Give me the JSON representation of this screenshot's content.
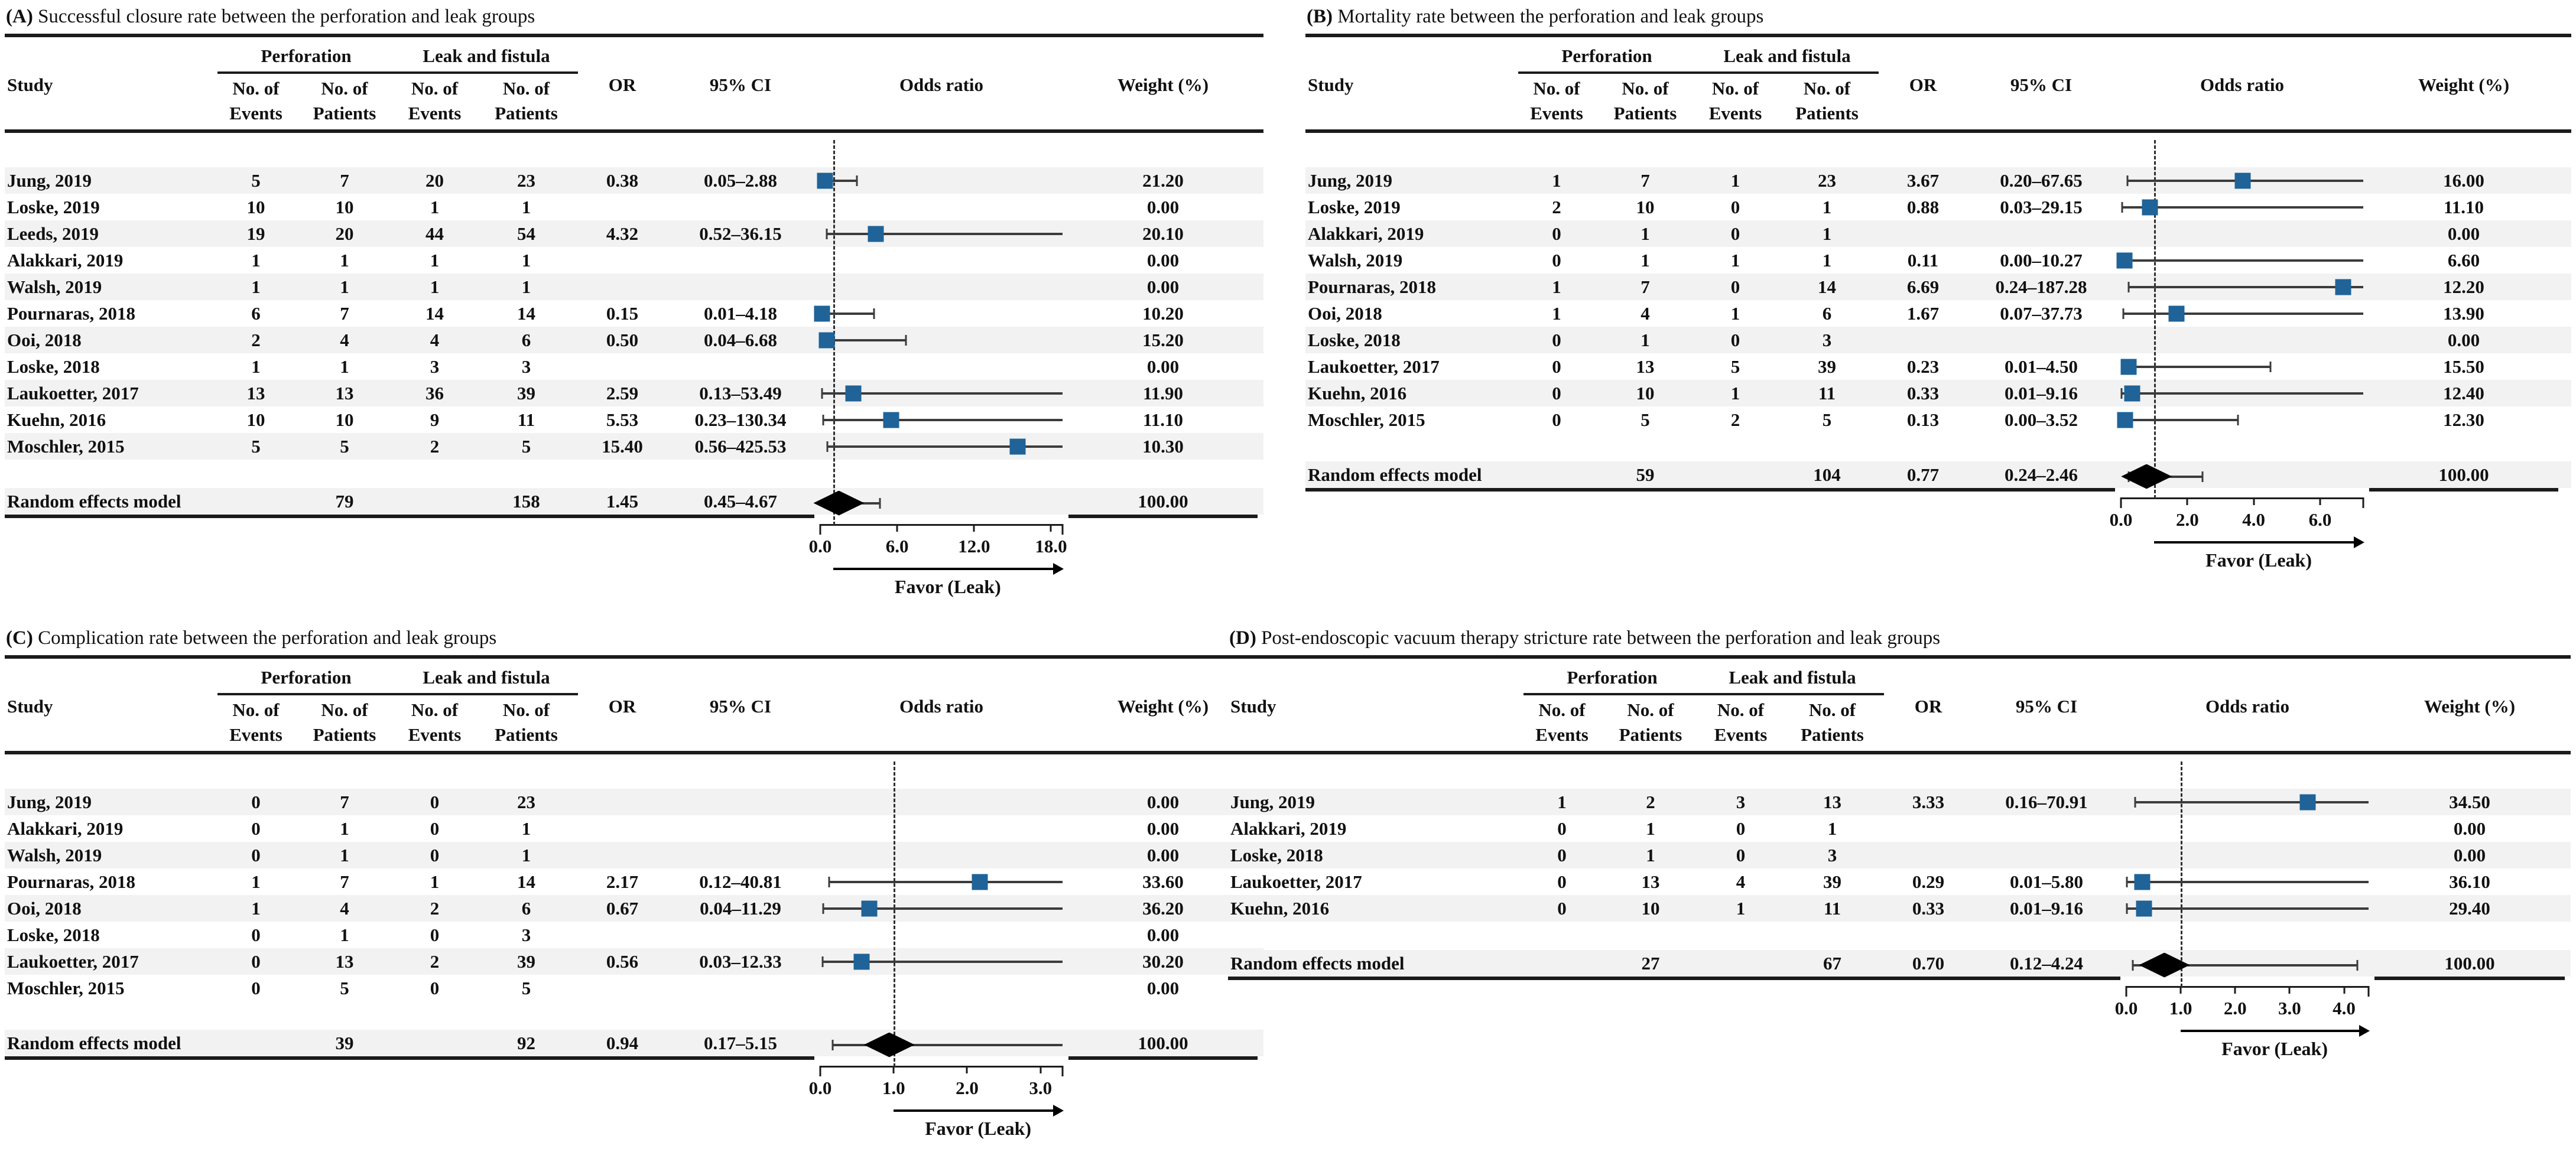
{
  "colors": {
    "marker": "#1f6398",
    "diamond": "#000000",
    "stripe": "#f2f2f2",
    "rule": "#1b1b1b"
  },
  "header": {
    "study": "Study",
    "perforation": "Perforation",
    "leak": "Leak and fistula",
    "no_of": "No. of",
    "events": "Events",
    "patients": "Patients",
    "or": "OR",
    "ci": "95% CI",
    "odds_ratio": "Odds ratio",
    "weight": "Weight (%)"
  },
  "chart_data": [
    {
      "id": "A",
      "type": "forest_plot",
      "label": "(A)",
      "title": "Successful closure rate between the perforation and leak groups",
      "favor_label": "Favor (Leak)",
      "axis": {
        "ticks": [
          0,
          6,
          12,
          18
        ],
        "tick_labels": [
          "0.0",
          "6.0",
          "12.0",
          "18.0"
        ],
        "end": 18.9,
        "null_line": 1.0
      },
      "rows": [
        {
          "study": "Jung, 2019",
          "perf_events": "5",
          "perf_patients": "7",
          "leak_events": "20",
          "leak_patients": "23",
          "or": "0.38",
          "ci": "0.05–2.88",
          "weight": "21.20",
          "est": [
            0.38,
            0.05,
            2.88
          ]
        },
        {
          "study": "Loske, 2019",
          "perf_events": "10",
          "perf_patients": "10",
          "leak_events": "1",
          "leak_patients": "1",
          "or": "",
          "ci": "",
          "weight": "0.00",
          "est": null
        },
        {
          "study": "Leeds, 2019",
          "perf_events": "19",
          "perf_patients": "20",
          "leak_events": "44",
          "leak_patients": "54",
          "or": "4.32",
          "ci": "0.52–36.15",
          "weight": "20.10",
          "est": [
            4.32,
            0.52,
            36.15
          ]
        },
        {
          "study": "Alakkari, 2019",
          "perf_events": "1",
          "perf_patients": "1",
          "leak_events": "1",
          "leak_patients": "1",
          "or": "",
          "ci": "",
          "weight": "0.00",
          "est": null
        },
        {
          "study": "Walsh, 2019",
          "perf_events": "1",
          "perf_patients": "1",
          "leak_events": "1",
          "leak_patients": "1",
          "or": "",
          "ci": "",
          "weight": "0.00",
          "est": null
        },
        {
          "study": "Pournaras, 2018",
          "perf_events": "6",
          "perf_patients": "7",
          "leak_events": "14",
          "leak_patients": "14",
          "or": "0.15",
          "ci": "0.01–4.18",
          "weight": "10.20",
          "est": [
            0.15,
            0.01,
            4.18
          ]
        },
        {
          "study": "Ooi, 2018",
          "perf_events": "2",
          "perf_patients": "4",
          "leak_events": "4",
          "leak_patients": "6",
          "or": "0.50",
          "ci": "0.04–6.68",
          "weight": "15.20",
          "est": [
            0.5,
            0.04,
            6.68
          ]
        },
        {
          "study": "Loske, 2018",
          "perf_events": "1",
          "perf_patients": "1",
          "leak_events": "3",
          "leak_patients": "3",
          "or": "",
          "ci": "",
          "weight": "0.00",
          "est": null
        },
        {
          "study": "Laukoetter, 2017",
          "perf_events": "13",
          "perf_patients": "13",
          "leak_events": "36",
          "leak_patients": "39",
          "or": "2.59",
          "ci": "0.13–53.49",
          "weight": "11.90",
          "est": [
            2.59,
            0.13,
            53.49
          ]
        },
        {
          "study": "Kuehn, 2016",
          "perf_events": "10",
          "perf_patients": "10",
          "leak_events": "9",
          "leak_patients": "11",
          "or": "5.53",
          "ci": "0.23–130.34",
          "weight": "11.10",
          "est": [
            5.53,
            0.23,
            130.34
          ]
        },
        {
          "study": "Moschler, 2015",
          "perf_events": "5",
          "perf_patients": "5",
          "leak_events": "2",
          "leak_patients": "5",
          "or": "15.40",
          "ci": "0.56–425.53",
          "weight": "10.30",
          "est": [
            15.4,
            0.56,
            425.53
          ]
        }
      ],
      "summary": {
        "study": "Random effects model",
        "perf_events": "",
        "perf_patients": "79",
        "leak_events": "",
        "leak_patients": "158",
        "or": "1.45",
        "ci": "0.45–4.67",
        "weight": "100.00",
        "est": [
          1.45,
          0.45,
          4.67
        ]
      }
    },
    {
      "id": "B",
      "type": "forest_plot",
      "label": "(B)",
      "title": "Mortality rate between the perforation and leak groups",
      "favor_label": "Favor (Leak)",
      "axis": {
        "ticks": [
          0,
          2,
          4,
          6
        ],
        "tick_labels": [
          "0.0",
          "2.0",
          "4.0",
          "6.0"
        ],
        "end": 7.3,
        "null_line": 1.0
      },
      "rows": [
        {
          "study": "Jung, 2019",
          "perf_events": "1",
          "perf_patients": "7",
          "leak_events": "1",
          "leak_patients": "23",
          "or": "3.67",
          "ci": "0.20–67.65",
          "weight": "16.00",
          "est": [
            3.67,
            0.2,
            67.65
          ]
        },
        {
          "study": "Loske, 2019",
          "perf_events": "2",
          "perf_patients": "10",
          "leak_events": "0",
          "leak_patients": "1",
          "or": "0.88",
          "ci": "0.03–29.15",
          "weight": "11.10",
          "est": [
            0.88,
            0.03,
            29.15
          ]
        },
        {
          "study": "Alakkari, 2019",
          "perf_events": "0",
          "perf_patients": "1",
          "leak_events": "0",
          "leak_patients": "1",
          "or": "",
          "ci": "",
          "weight": "0.00",
          "est": null
        },
        {
          "study": "Walsh, 2019",
          "perf_events": "0",
          "perf_patients": "1",
          "leak_events": "1",
          "leak_patients": "1",
          "or": "0.11",
          "ci": "0.00–10.27",
          "weight": "6.60",
          "est": [
            0.11,
            0.0,
            10.27
          ]
        },
        {
          "study": "Pournaras, 2018",
          "perf_events": "1",
          "perf_patients": "7",
          "leak_events": "0",
          "leak_patients": "14",
          "or": "6.69",
          "ci": "0.24–187.28",
          "weight": "12.20",
          "est": [
            6.69,
            0.24,
            187.28
          ]
        },
        {
          "study": "Ooi, 2018",
          "perf_events": "1",
          "perf_patients": "4",
          "leak_events": "1",
          "leak_patients": "6",
          "or": "1.67",
          "ci": "0.07–37.73",
          "weight": "13.90",
          "est": [
            1.67,
            0.07,
            37.73
          ]
        },
        {
          "study": "Loske, 2018",
          "perf_events": "0",
          "perf_patients": "1",
          "leak_events": "0",
          "leak_patients": "3",
          "or": "",
          "ci": "",
          "weight": "0.00",
          "est": null
        },
        {
          "study": "Laukoetter, 2017",
          "perf_events": "0",
          "perf_patients": "13",
          "leak_events": "5",
          "leak_patients": "39",
          "or": "0.23",
          "ci": "0.01–4.50",
          "weight": "15.50",
          "est": [
            0.23,
            0.01,
            4.5
          ]
        },
        {
          "study": "Kuehn, 2016",
          "perf_events": "0",
          "perf_patients": "10",
          "leak_events": "1",
          "leak_patients": "11",
          "or": "0.33",
          "ci": "0.01–9.16",
          "weight": "12.40",
          "est": [
            0.33,
            0.01,
            9.16
          ]
        },
        {
          "study": "Moschler, 2015",
          "perf_events": "0",
          "perf_patients": "5",
          "leak_events": "2",
          "leak_patients": "5",
          "or": "0.13",
          "ci": "0.00–3.52",
          "weight": "12.30",
          "est": [
            0.13,
            0.0,
            3.52
          ]
        }
      ],
      "summary": {
        "study": "Random effects model",
        "perf_events": "",
        "perf_patients": "59",
        "leak_events": "",
        "leak_patients": "104",
        "or": "0.77",
        "ci": "0.24–2.46",
        "weight": "100.00",
        "est": [
          0.77,
          0.24,
          2.46
        ]
      }
    },
    {
      "id": "C",
      "type": "forest_plot",
      "label": "(C)",
      "title": "Complication rate between the perforation and leak groups",
      "favor_label": "Favor (Leak)",
      "axis": {
        "ticks": [
          0,
          1,
          2,
          3
        ],
        "tick_labels": [
          "0.0",
          "1.0",
          "2.0",
          "3.0"
        ],
        "end": 3.3,
        "null_line": 1.0
      },
      "rows": [
        {
          "study": "Jung, 2019",
          "perf_events": "0",
          "perf_patients": "7",
          "leak_events": "0",
          "leak_patients": "23",
          "or": "",
          "ci": "",
          "weight": "0.00",
          "est": null
        },
        {
          "study": "Alakkari, 2019",
          "perf_events": "0",
          "perf_patients": "1",
          "leak_events": "0",
          "leak_patients": "1",
          "or": "",
          "ci": "",
          "weight": "0.00",
          "est": null
        },
        {
          "study": "Walsh, 2019",
          "perf_events": "0",
          "perf_patients": "1",
          "leak_events": "0",
          "leak_patients": "1",
          "or": "",
          "ci": "",
          "weight": "0.00",
          "est": null
        },
        {
          "study": "Pournaras, 2018",
          "perf_events": "1",
          "perf_patients": "7",
          "leak_events": "1",
          "leak_patients": "14",
          "or": "2.17",
          "ci": "0.12–40.81",
          "weight": "33.60",
          "est": [
            2.17,
            0.12,
            40.81
          ]
        },
        {
          "study": "Ooi, 2018",
          "perf_events": "1",
          "perf_patients": "4",
          "leak_events": "2",
          "leak_patients": "6",
          "or": "0.67",
          "ci": "0.04–11.29",
          "weight": "36.20",
          "est": [
            0.67,
            0.04,
            11.29
          ]
        },
        {
          "study": "Loske, 2018",
          "perf_events": "0",
          "perf_patients": "1",
          "leak_events": "0",
          "leak_patients": "3",
          "or": "",
          "ci": "",
          "weight": "0.00",
          "est": null
        },
        {
          "study": "Laukoetter, 2017",
          "perf_events": "0",
          "perf_patients": "13",
          "leak_events": "2",
          "leak_patients": "39",
          "or": "0.56",
          "ci": "0.03–12.33",
          "weight": "30.20",
          "est": [
            0.56,
            0.03,
            12.33
          ]
        },
        {
          "study": "Moschler, 2015",
          "perf_events": "0",
          "perf_patients": "5",
          "leak_events": "0",
          "leak_patients": "5",
          "or": "",
          "ci": "",
          "weight": "0.00",
          "est": null
        }
      ],
      "summary": {
        "study": "Random effects model",
        "perf_events": "",
        "perf_patients": "39",
        "leak_events": "",
        "leak_patients": "92",
        "or": "0.94",
        "ci": "0.17–5.15",
        "weight": "100.00",
        "est": [
          0.94,
          0.17,
          5.15
        ]
      }
    },
    {
      "id": "D",
      "type": "forest_plot",
      "label": "(D)",
      "title": "Post-endoscopic vacuum therapy stricture rate between the perforation and leak groups",
      "favor_label": "Favor (Leak)",
      "axis": {
        "ticks": [
          0,
          1,
          2,
          3,
          4
        ],
        "tick_labels": [
          "0.0",
          "1.0",
          "2.0",
          "3.0",
          "4.0"
        ],
        "end": 4.45,
        "null_line": 1.0
      },
      "rows": [
        {
          "study": "Jung, 2019",
          "perf_events": "1",
          "perf_patients": "2",
          "leak_events": "3",
          "leak_patients": "13",
          "or": "3.33",
          "ci": "0.16–70.91",
          "weight": "34.50",
          "est": [
            3.33,
            0.16,
            70.91
          ]
        },
        {
          "study": "Alakkari, 2019",
          "perf_events": "0",
          "perf_patients": "1",
          "leak_events": "0",
          "leak_patients": "1",
          "or": "",
          "ci": "",
          "weight": "0.00",
          "est": null
        },
        {
          "study": "Loske, 2018",
          "perf_events": "0",
          "perf_patients": "1",
          "leak_events": "0",
          "leak_patients": "3",
          "or": "",
          "ci": "",
          "weight": "0.00",
          "est": null
        },
        {
          "study": "Laukoetter, 2017",
          "perf_events": "0",
          "perf_patients": "13",
          "leak_events": "4",
          "leak_patients": "39",
          "or": "0.29",
          "ci": "0.01–5.80",
          "weight": "36.10",
          "est": [
            0.29,
            0.01,
            5.8
          ]
        },
        {
          "study": "Kuehn, 2016",
          "perf_events": "0",
          "perf_patients": "10",
          "leak_events": "1",
          "leak_patients": "11",
          "or": "0.33",
          "ci": "0.01–9.16",
          "weight": "29.40",
          "est": [
            0.33,
            0.01,
            9.16
          ]
        }
      ],
      "summary": {
        "study": "Random effects model",
        "perf_events": "",
        "perf_patients": "27",
        "leak_events": "",
        "leak_patients": "67",
        "or": "0.70",
        "ci": "0.12–4.24",
        "weight": "100.00",
        "est": [
          0.7,
          0.12,
          4.24
        ]
      }
    }
  ]
}
